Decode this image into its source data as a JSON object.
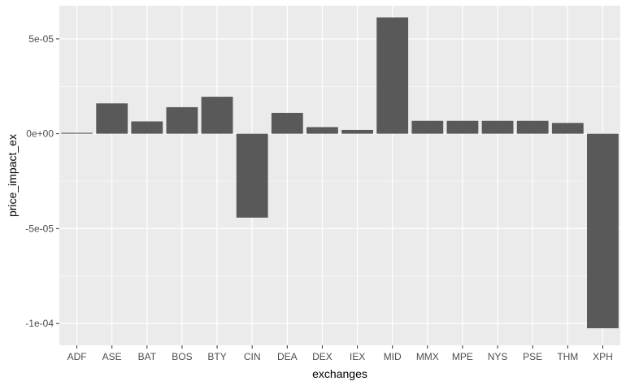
{
  "chart_data": {
    "type": "bar",
    "xlabel": "exchanges",
    "ylabel": "price_impact_ex",
    "categories": [
      "ADF",
      "ASE",
      "BAT",
      "BOS",
      "BTY",
      "CIN",
      "DEA",
      "DEX",
      "IEX",
      "MID",
      "MMX",
      "MPE",
      "NYS",
      "PSE",
      "THM",
      "XPH"
    ],
    "values": [
      5e-07,
      1.6e-05,
      6.5e-06,
      1.4e-05,
      1.95e-05,
      -4.42e-05,
      1.1e-05,
      3.5e-06,
      2e-06,
      6.13e-05,
      6.8e-06,
      6.8e-06,
      6.8e-06,
      6.8e-06,
      5.7e-06,
      -0.0001025
    ],
    "ylim": [
      -0.0001115,
      6.75e-05
    ],
    "yticks": [
      5e-05,
      0,
      -5e-05,
      -0.0001
    ],
    "ytick_labels": [
      "5e-05",
      "0e+00",
      "-5e-05",
      "-1e-04"
    ],
    "grid": true,
    "bar_color": "#595959",
    "panel_color": "#ebebeb",
    "grid_color": "#ffffff"
  }
}
